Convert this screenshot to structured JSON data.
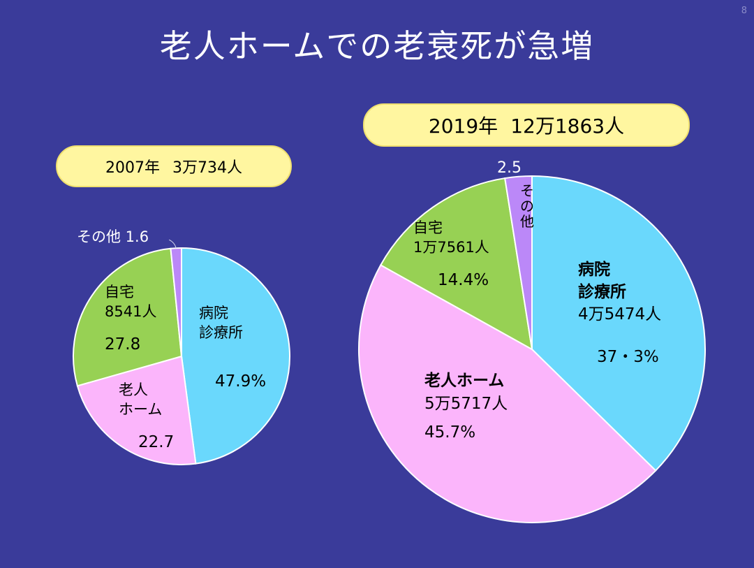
{
  "page_number": "8",
  "title": "老人ホームでの老衰死が急増",
  "colors": {
    "background": "#3a3b9a",
    "hospital": "#6ad8fc",
    "nursing_home": "#fbb5fb",
    "home": "#97d154",
    "other": "#bb88f8",
    "year_box": "#fff6a0"
  },
  "chart_data": [
    {
      "type": "pie",
      "year_label": "2007年",
      "total_label": "3万734人",
      "slices": [
        {
          "key": "hospital",
          "value": 47.9,
          "lines": [
            "病院",
            "診療所"
          ],
          "value_label": "47.9%"
        },
        {
          "key": "nursing_home",
          "value": 22.7,
          "lines": [
            "老人",
            "ホーム"
          ],
          "value_label": "22.7"
        },
        {
          "key": "home",
          "value": 27.8,
          "lines": [
            "自宅",
            "8541人"
          ],
          "value_label": "27.8"
        },
        {
          "key": "other",
          "value": 1.6,
          "lines": [],
          "value_label": "その他 1.6"
        }
      ]
    },
    {
      "type": "pie",
      "year_label": "2019年",
      "total_label": "12万1863人",
      "slices": [
        {
          "key": "hospital",
          "value": 37.3,
          "lines": [
            "病院",
            "診療所",
            "4万5474人"
          ],
          "value_label": "37・3%"
        },
        {
          "key": "nursing_home",
          "value": 45.7,
          "lines": [
            "老人ホーム",
            "5万5717人"
          ],
          "value_label": "45.7%"
        },
        {
          "key": "home",
          "value": 14.4,
          "lines": [
            "自宅",
            "1万7561人"
          ],
          "value_label": "14.4%"
        },
        {
          "key": "other",
          "value": 2.5,
          "lines": [
            "その他"
          ],
          "value_label": "2.5"
        }
      ]
    }
  ]
}
